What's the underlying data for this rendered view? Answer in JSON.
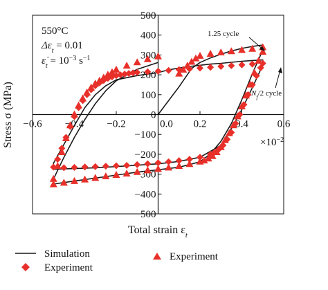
{
  "chart_data": {
    "type": "line",
    "xlabel": "Total strain ε",
    "xlabel_sub": "t",
    "ylabel": "Stress σ (MPa)",
    "x_multiplier": "×10",
    "x_multiplier_exp": "−2",
    "xlim": [
      -0.6,
      0.6
    ],
    "ylim": [
      -500,
      500
    ],
    "x_ticks": [
      {
        "value": -0.6,
        "label": "−0.6"
      },
      {
        "value": -0.4,
        "label": "−0.4"
      },
      {
        "value": -0.2,
        "label": "−0.2"
      },
      {
        "value": 0.0,
        "label": "0.0"
      },
      {
        "value": 0.2,
        "label": "0.2"
      },
      {
        "value": 0.4,
        "label": "0.4"
      },
      {
        "value": 0.6,
        "label": "0.6"
      }
    ],
    "y_ticks": [
      {
        "value": 500,
        "label": "500"
      },
      {
        "value": 400,
        "label": "400"
      },
      {
        "value": 300,
        "label": "300"
      },
      {
        "value": 200,
        "label": "200"
      },
      {
        "value": 100,
        "label": "100"
      },
      {
        "value": 0,
        "label": "0"
      },
      {
        "value": -100,
        "label": "−100"
      },
      {
        "value": -200,
        "label": "−200"
      },
      {
        "value": -300,
        "label": "−300"
      },
      {
        "value": -400,
        "label": "−400"
      },
      {
        "value": -500,
        "label": "−500"
      }
    ],
    "conditions": [
      "550°C",
      "Δε = 0.01",
      "ε̇ = 10   s"
    ],
    "condition_parts": {
      "temperature": "550°C",
      "delta_prefix": "Δε",
      "delta_sub": "t",
      "delta_value": " = 0.01",
      "rate_prefix": "ε̇",
      "rate_sub": "t",
      "rate_value": " = 10",
      "rate_exp": "−3",
      "rate_unit": " s",
      "rate_unit_exp": "−1"
    },
    "annotations": {
      "cycle1": "1.25 cycle",
      "cycle2_N": "N",
      "cycle2_sub": "f",
      "cycle2_rest": "/2 cycle"
    },
    "legend": {
      "simulation": "Simulation",
      "experiment_diamond": "Experiment",
      "experiment_triangle": "Experiment"
    },
    "colors": {
      "simulation": "#1a1a1a",
      "experiment": "#e8302a"
    },
    "series": [
      {
        "name": "Simulation",
        "role": "simulation-half-life",
        "x": [
          0.0,
          0.05,
          0.1,
          0.15,
          0.2,
          0.25,
          0.3,
          0.35,
          0.4,
          0.45,
          0.5,
          0.5,
          0.45,
          0.4,
          0.35,
          0.3,
          0.2,
          0.1,
          0.0,
          -0.1,
          -0.2,
          -0.3,
          -0.4,
          -0.5,
          -0.5,
          -0.45,
          -0.4,
          -0.35,
          -0.3,
          -0.25,
          -0.2,
          -0.1,
          0.0
        ],
        "y": [
          211,
          225,
          234,
          242,
          248,
          254,
          258,
          263,
          268,
          272,
          275,
          250,
          135,
          25,
          -70,
          -155,
          -215,
          -236,
          -248,
          -255,
          -262,
          -268,
          -272,
          -275,
          -245,
          -150,
          -55,
          35,
          100,
          145,
          175,
          196,
          211
        ]
      },
      {
        "name": "Simulation",
        "role": "simulation-first-cycle",
        "x": [
          0.0,
          0.1,
          0.16,
          0.2,
          0.25,
          0.3,
          0.35,
          0.4,
          0.45,
          0.5,
          0.5,
          0.45,
          0.4,
          0.35,
          0.3,
          0.25,
          0.2,
          0.1,
          0.0,
          -0.1,
          -0.2,
          -0.3,
          -0.4,
          -0.5,
          -0.5,
          -0.45,
          -0.4,
          -0.35,
          -0.3,
          -0.25,
          -0.2,
          -0.1,
          0.0
        ],
        "y": [
          0,
          140,
          232,
          262,
          285,
          304,
          320,
          333,
          343,
          350,
          325,
          205,
          75,
          -45,
          -135,
          -198,
          -238,
          -265,
          -278,
          -290,
          -305,
          -320,
          -335,
          -350,
          -325,
          -215,
          -115,
          -25,
          55,
          120,
          170,
          228,
          262
        ]
      },
      {
        "name": "Experiment",
        "role": "experiment-diamond",
        "x": [
          -0.5,
          -0.48,
          -0.46,
          -0.44,
          -0.42,
          -0.4,
          -0.38,
          -0.36,
          -0.34,
          -0.32,
          -0.3,
          -0.28,
          -0.26,
          -0.24,
          -0.22,
          -0.2,
          -0.18,
          -0.16,
          -0.14,
          -0.12,
          -0.1,
          -0.05,
          0.0,
          0.05,
          0.1,
          0.15,
          0.2,
          0.25,
          0.3,
          0.35,
          0.4,
          0.45,
          0.5,
          0.49,
          0.47,
          0.45,
          0.43,
          0.41,
          0.39,
          0.37,
          0.35,
          0.33,
          0.31,
          0.29,
          0.27,
          0.25,
          0.2,
          0.15,
          0.1,
          0.05,
          0.0,
          -0.05,
          -0.1,
          -0.15,
          -0.2,
          -0.25,
          -0.3,
          -0.35,
          -0.4,
          -0.45
        ],
        "y": [
          -265,
          -225,
          -170,
          -115,
          -60,
          -10,
          35,
          70,
          100,
          125,
          145,
          160,
          172,
          182,
          190,
          196,
          200,
          204,
          207,
          210,
          212,
          215,
          218,
          222,
          226,
          230,
          234,
          238,
          242,
          246,
          250,
          254,
          258,
          235,
          195,
          150,
          100,
          50,
          0,
          -45,
          -90,
          -125,
          -155,
          -175,
          -190,
          -200,
          -215,
          -225,
          -232,
          -238,
          -243,
          -248,
          -252,
          -256,
          -258,
          -260,
          -262,
          -264,
          -266,
          -268
        ]
      },
      {
        "name": "Experiment",
        "role": "experiment-triangle",
        "x": [
          0.1,
          0.12,
          0.14,
          0.16,
          0.18,
          0.2,
          0.25,
          0.3,
          0.35,
          0.4,
          0.45,
          0.5,
          0.5,
          0.48,
          0.46,
          0.44,
          0.42,
          0.4,
          0.38,
          0.36,
          0.34,
          0.32,
          0.3,
          0.28,
          0.26,
          0.24,
          0.22,
          0.2,
          0.15,
          0.1,
          0.05,
          0.0,
          -0.05,
          -0.1,
          -0.15,
          -0.2,
          -0.25,
          -0.3,
          -0.35,
          -0.4,
          -0.45,
          -0.5,
          -0.5,
          -0.48,
          -0.46,
          -0.44,
          -0.42,
          -0.4,
          -0.38,
          -0.36,
          -0.34,
          -0.32,
          -0.3,
          -0.28,
          -0.26,
          -0.24,
          -0.22,
          -0.2,
          -0.15,
          -0.1,
          -0.05,
          0.0
        ],
        "y": [
          205,
          225,
          245,
          265,
          282,
          295,
          305,
          312,
          318,
          324,
          330,
          338,
          315,
          270,
          210,
          150,
          95,
          40,
          -10,
          -55,
          -95,
          -130,
          -165,
          -190,
          -210,
          -222,
          -232,
          -238,
          -250,
          -260,
          -268,
          -275,
          -282,
          -290,
          -298,
          -305,
          -312,
          -320,
          -328,
          -336,
          -344,
          -352,
          -325,
          -260,
          -190,
          -120,
          -55,
          0,
          45,
          80,
          110,
          135,
          155,
          170,
          185,
          200,
          212,
          225,
          245,
          262,
          278,
          292
        ]
      }
    ]
  }
}
